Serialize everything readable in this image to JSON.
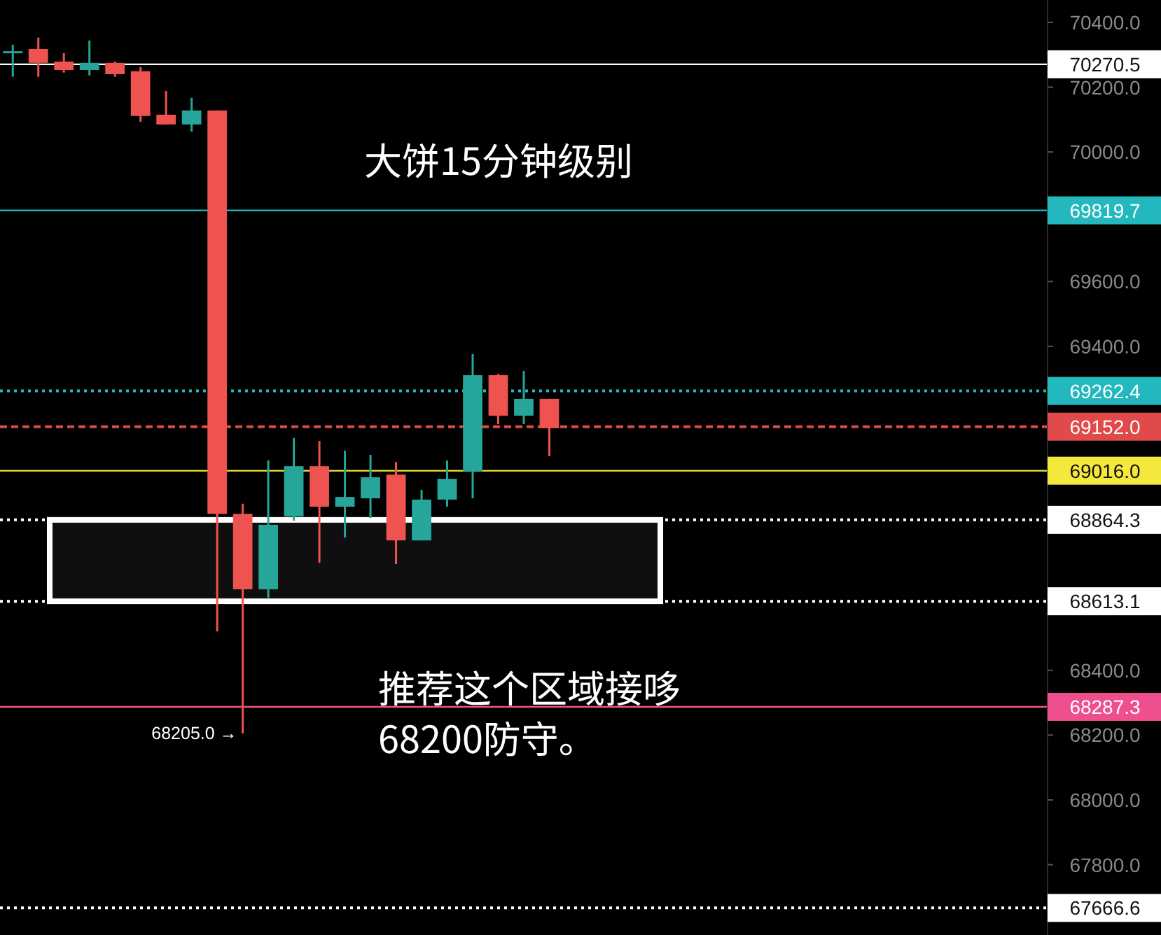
{
  "chart_data": {
    "type": "candlestick",
    "title": "大饼15分钟级别",
    "categories": [
      null,
      null,
      null,
      null,
      null,
      null,
      null,
      null,
      null,
      null,
      null,
      null,
      null,
      null,
      null,
      null,
      null,
      null,
      null,
      null,
      null,
      null,
      null,
      null,
      null,
      null,
      null,
      null,
      null,
      null,
      null,
      null,
      null,
      null,
      null,
      null,
      null,
      null,
      null,
      null,
      null
    ],
    "ohlc": [
      [
        70307,
        70331,
        70232,
        70311
      ],
      [
        70318,
        70353,
        70232,
        70275
      ],
      [
        70279,
        70305,
        70245,
        70253
      ],
      [
        70253,
        70344,
        70236,
        70275
      ],
      [
        70275,
        70279,
        70232,
        70240
      ],
      [
        70249,
        70262,
        70093,
        70111
      ],
      [
        70115,
        70188,
        70085,
        70085
      ],
      [
        70085,
        70167,
        70063,
        70128
      ],
      [
        70128,
        70128,
        68520,
        68883
      ],
      [
        68883,
        68914,
        68205,
        68650
      ],
      [
        68650,
        69048,
        68624,
        68849
      ],
      [
        68875,
        69117,
        68862,
        69030
      ],
      [
        69030,
        69108,
        68732,
        68905
      ],
      [
        68905,
        69078,
        68810,
        68935
      ],
      [
        68931,
        69065,
        68870,
        68996
      ],
      [
        69004,
        69043,
        68728,
        68801
      ],
      [
        68801,
        68957,
        68801,
        68927
      ],
      [
        68927,
        69048,
        68905,
        68991
      ],
      [
        69013,
        69376,
        68931,
        69311
      ],
      [
        69311,
        69315,
        69160,
        69186
      ],
      [
        69186,
        69324,
        69160,
        69238
      ],
      [
        69238,
        69238,
        69061,
        69147
      ],
      null,
      null,
      null,
      null,
      null,
      null,
      null,
      null,
      null,
      null,
      null,
      null,
      null,
      null,
      null,
      null,
      null,
      null,
      null
    ],
    "colors": [
      "#26a69a",
      "#ef5350",
      "#ef5350",
      "#26a69a",
      "#ef5350",
      "#ef5350",
      "#ef5350",
      "#26a69a",
      "#ef5350",
      "#ef5350",
      "#26a69a",
      "#26a69a",
      "#ef5350",
      "#26a69a",
      "#26a69a",
      "#ef5350",
      "#26a69a",
      "#26a69a",
      "#26a69a",
      "#ef5350",
      "#26a69a",
      "#ef5350",
      null,
      null,
      null,
      null,
      null,
      null,
      null,
      null,
      null,
      null,
      null,
      null,
      null,
      null,
      null,
      null,
      null,
      null,
      null
    ],
    "ylim": [
      67583,
      70469
    ],
    "yticks": [
      {
        "value": 70400,
        "label": "70400.0"
      },
      {
        "value": 70200,
        "label": "70200.0"
      },
      {
        "value": 70000,
        "label": "70000.0"
      },
      {
        "value": 69600,
        "label": "69600.0"
      },
      {
        "value": 69400,
        "label": "69400.0"
      },
      {
        "value": 68400,
        "label": "68400.0"
      },
      {
        "value": 68200,
        "label": "68200.0"
      },
      {
        "value": 68000,
        "label": "68000.0"
      },
      {
        "value": 67800,
        "label": "67800.0"
      }
    ],
    "ref_lines": [
      {
        "axis": "y",
        "value": 70270.5,
        "label": "70270.5",
        "color": "#ffffff",
        "line_style": "solid"
      },
      {
        "axis": "y",
        "value": 69819.7,
        "label": "69819.7",
        "color": "#22b8bd",
        "line_style": "solid"
      },
      {
        "axis": "y",
        "value": 69262.4,
        "label": "69262.4",
        "color": "#22b8bd",
        "line_style": "dotted"
      },
      {
        "axis": "y",
        "value": 69152.0,
        "label": "69152.0",
        "color": "#e04a4a",
        "line_style": "dashed"
      },
      {
        "axis": "y",
        "value": 69016.0,
        "label": "69016.0",
        "color": "#f5e83c",
        "line_style": "solid"
      },
      {
        "axis": "y",
        "value": 68864.3,
        "label": "68864.3",
        "color": "#ffffff",
        "line_style": "dotted"
      },
      {
        "axis": "y",
        "value": 68613.1,
        "label": "68613.1",
        "color": "#ffffff",
        "line_style": "dotted"
      },
      {
        "axis": "y",
        "value": 68287.3,
        "label": "68287.3",
        "color": "#ef4f8f",
        "line_style": "solid"
      },
      {
        "axis": "y",
        "value": 67666.6,
        "label": "67666.6",
        "color": "#ffffff",
        "line_style": "dotted"
      }
    ],
    "bands": [
      {
        "axis": "y",
        "from": 68613.1,
        "to": 68864.3,
        "color": "#ffffff"
      }
    ],
    "annotations": [
      "68205.0 →",
      "推荐这个区域接哆\n68200防守。"
    ]
  }
}
